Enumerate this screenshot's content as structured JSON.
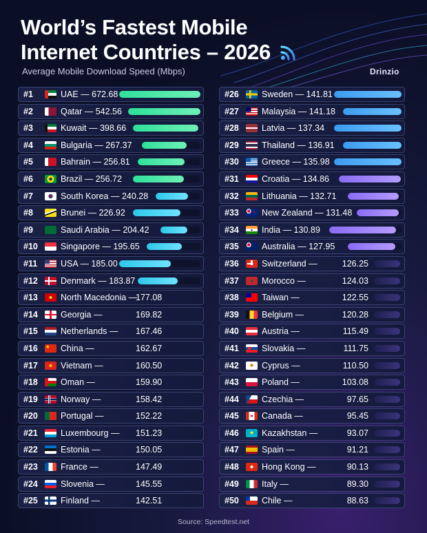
{
  "header": {
    "title_line1": "World’s Fastest Mobile",
    "title_line2": "Internet Countries – 2026",
    "subtitle": "Average Mobile Download Speed (Mbps)",
    "brand": "Drinzio",
    "source": "Source: Speedtest.net"
  },
  "colors": {
    "green": "#2fe09a",
    "teal": "#2ec8e8",
    "blue": "#3d9cf0",
    "purple": "#8a6cf5"
  },
  "chart_data": {
    "type": "bar",
    "title": "World’s Fastest Mobile Internet Countries – 2026",
    "subtitle": "Average Mobile Download Speed (Mbps)",
    "categories": [
      "UAE",
      "Qatar",
      "Kuwait",
      "Bulgaria",
      "Bahrain",
      "Brazil",
      "South Korea",
      "Brunei",
      "Saudi Arabia",
      "Singapore",
      "USA",
      "Denmark",
      "North Macedonia",
      "Georgia",
      "Netherlands",
      "China",
      "Vietnam",
      "Oman",
      "Norway",
      "Portugal",
      "Luxembourg",
      "Estonia",
      "France",
      "Slovenia",
      "Finland",
      "Sweden",
      "Malaysia",
      "Latvia",
      "Thailand",
      "Greece",
      "Croatia",
      "Lithuania",
      "New Zealand",
      "India",
      "Australia",
      "Switzerland",
      "Morocco",
      "Taiwan",
      "Belgium",
      "Austria",
      "Slovakia",
      "Cyprus",
      "Poland",
      "Czechia",
      "Canada",
      "Kazakhstan",
      "Spain",
      "Hong Kong",
      "Italy",
      "Chile"
    ],
    "values": [
      672.68,
      542.56,
      398.66,
      267.37,
      256.81,
      256.72,
      240.28,
      226.92,
      204.42,
      195.65,
      185.0,
      183.87,
      177.08,
      169.82,
      167.46,
      162.67,
      160.5,
      159.9,
      158.42,
      152.22,
      151.23,
      150.05,
      147.49,
      145.55,
      142.51,
      141.81,
      141.18,
      137.34,
      136.91,
      135.98,
      134.86,
      132.71,
      131.48,
      130.89,
      127.95,
      126.25,
      124.03,
      122.55,
      120.28,
      115.49,
      111.75,
      110.5,
      103.08,
      97.65,
      95.45,
      93.07,
      91.21,
      90.13,
      89.3,
      88.63
    ],
    "value_labels": [
      "672.68",
      "542.56",
      "398.66",
      "267.37",
      "256.81",
      "256.72",
      "240.28",
      "226.92",
      "204.42",
      "195.65",
      "185.00",
      "183.87",
      "177.08",
      "169.82",
      "167.46",
      "162.67",
      "160.50",
      "159.90",
      "158.42",
      "152.22",
      "151.23",
      "150.05",
      "147.49",
      "145.55",
      "142.51",
      "141.81",
      "141.18",
      "137.34",
      "136.91",
      "135.98",
      "134.86",
      "132.71",
      "131.48",
      "130.89",
      "127.95",
      "126.25",
      "124.03",
      "122.55",
      "120.28",
      "115.49",
      "111.75",
      "110.50",
      "103.08",
      "97.65",
      "95.45",
      "93.07",
      "91.21",
      "90.13",
      "89.30",
      "88.63"
    ],
    "ranks": [
      "#1",
      "#2",
      "#3",
      "#4",
      "#5",
      "#6",
      "#7",
      "#8",
      "#9",
      "#10",
      "#11",
      "#12",
      "#13",
      "#14",
      "#15",
      "#16",
      "#17",
      "#18",
      "#19",
      "#20",
      "#21",
      "#22",
      "#23",
      "#24",
      "#25",
      "#26",
      "#27",
      "#28",
      "#29",
      "#30",
      "#31",
      "#32",
      "#33",
      "#34",
      "#35",
      "#36",
      "#37",
      "#38",
      "#39",
      "#40",
      "#41",
      "#42",
      "#43",
      "#44",
      "#45",
      "#46",
      "#47",
      "#48",
      "#49",
      "#50"
    ],
    "bar_drawn": [
      true,
      true,
      true,
      true,
      true,
      true,
      true,
      true,
      true,
      true,
      true,
      true,
      false,
      false,
      false,
      false,
      false,
      false,
      false,
      false,
      false,
      false,
      false,
      false,
      false,
      true,
      true,
      true,
      true,
      true,
      true,
      true,
      true,
      true,
      true,
      false,
      false,
      false,
      false,
      false,
      false,
      false,
      false,
      false,
      false,
      false,
      false,
      false,
      false,
      false
    ],
    "flags": [
      "uae",
      "qatar",
      "kuwait",
      "bulgaria",
      "bahrain",
      "brazil",
      "south-korea",
      "brunei",
      "saudi-arabia",
      "singapore",
      "usa",
      "denmark",
      "north-macedonia",
      "georgia",
      "netherlands",
      "china",
      "vietnam",
      "oman",
      "norway",
      "portugal",
      "luxembourg",
      "estonia",
      "france",
      "slovenia",
      "finland",
      "sweden",
      "malaysia",
      "latvia",
      "thailand",
      "greece",
      "croatia",
      "lithuania",
      "new-zealand",
      "india",
      "australia",
      "switzerland",
      "morocco",
      "taiwan",
      "belgium",
      "austria",
      "slovakia",
      "cyprus",
      "poland",
      "czechia",
      "canada",
      "kazakhstan",
      "spain",
      "hong-kong",
      "italy",
      "chile"
    ],
    "unit": "Mbps",
    "legend": "none",
    "grid": false
  }
}
